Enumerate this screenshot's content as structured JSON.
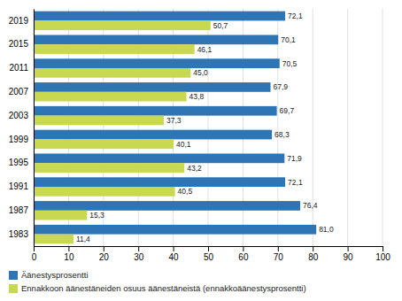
{
  "chart_data": {
    "type": "bar",
    "orientation": "horizontal",
    "categories": [
      "2019",
      "2015",
      "2011",
      "2007",
      "2003",
      "1999",
      "1995",
      "1991",
      "1987",
      "1983"
    ],
    "series": [
      {
        "name": "Äänestysprosentti",
        "color": "#2E75B6",
        "values": [
          72.1,
          70.1,
          70.5,
          67.9,
          69.7,
          68.3,
          71.9,
          72.1,
          76.4,
          81.0
        ],
        "value_labels": [
          "72,1",
          "70,1",
          "70,5",
          "67,9",
          "69,7",
          "68,3",
          "71,9",
          "72,1",
          "76,4",
          "81,0"
        ]
      },
      {
        "name": "Ennakkoon äänestäneiden osuus äänestäneistä (ennakkoäänestysprosentti)",
        "color": "#C8D850",
        "values": [
          50.7,
          46.1,
          45.0,
          43.8,
          37.3,
          40.1,
          43.2,
          40.5,
          15.3,
          11.4
        ],
        "value_labels": [
          "50,7",
          "46,1",
          "45,0",
          "43,8",
          "37,3",
          "40,1",
          "43,2",
          "40,5",
          "15,3",
          "11,4"
        ]
      }
    ],
    "xlim": [
      0,
      100
    ],
    "xticks": [
      0,
      10,
      20,
      30,
      40,
      50,
      60,
      70,
      80,
      90,
      100
    ],
    "grid": true,
    "data_labels": true,
    "legend": "bottom"
  }
}
